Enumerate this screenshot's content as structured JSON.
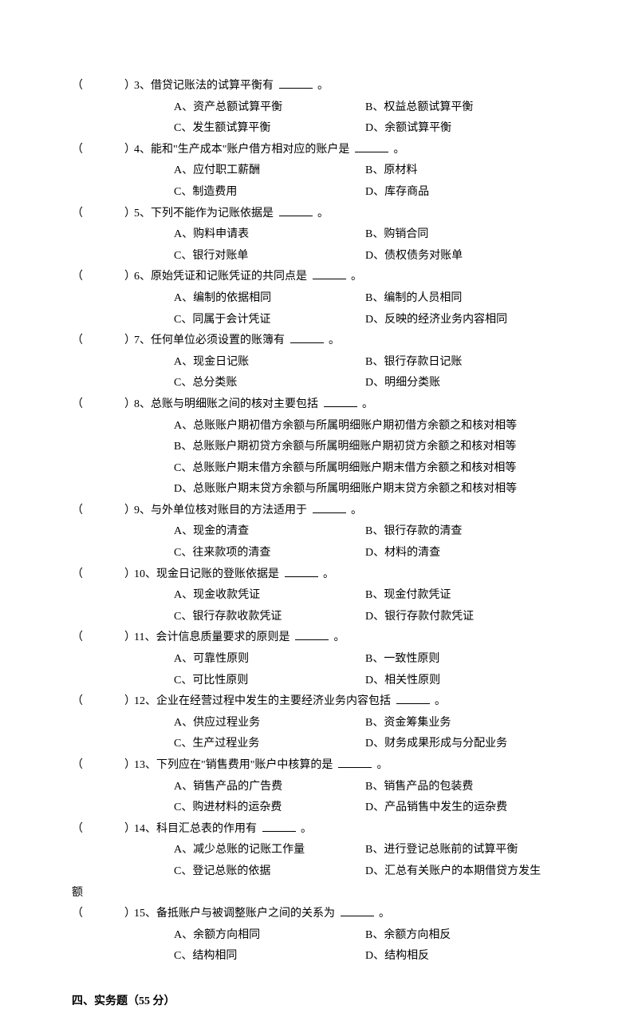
{
  "questions": [
    {
      "num": "3",
      "stem": "借贷记账法的试算平衡有",
      "A": "资产总额试算平衡",
      "B": "权益总额试算平衡",
      "C": "发生额试算平衡",
      "D": "余额试算平衡"
    },
    {
      "num": "4",
      "stem": "能和\"生产成本\"账户借方相对应的账户是",
      "A": "应付职工薪酬",
      "B": "原材料",
      "C": "制造费用",
      "D": "库存商品"
    },
    {
      "num": "5",
      "stem": "下列不能作为记账依据是",
      "A": "购料申请表",
      "B": "购销合同",
      "C": "银行对账单",
      "D": "债权债务对账单"
    },
    {
      "num": "6",
      "stem": "原始凭证和记账凭证的共同点是",
      "A": "编制的依据相同",
      "B": "编制的人员相同",
      "C": "同属于会计凭证",
      "D": "反映的经济业务内容相同"
    },
    {
      "num": "7",
      "stem": "任何单位必须设置的账簿有",
      "A": "现金日记账",
      "B": "银行存款日记账",
      "C": "总分类账",
      "D": "明细分类账"
    },
    {
      "num": "8",
      "stem": "总账与明细账之间的核对主要包括",
      "longA": "总账账户期初借方余额与所属明细账户期初借方余额之和核对相等",
      "longB": "总账账户期初贷方余额与所属明细账户期初贷方余额之和核对相等",
      "longC": "总账账户期末借方余额与所属明细账户期末借方余额之和核对相等",
      "longD": "总账账户期末贷方余额与所属明细账户期末贷方余额之和核对相等"
    },
    {
      "num": "9",
      "stem": "与外单位核对账目的方法适用于",
      "A": "现金的清查",
      "B": "银行存款的清查",
      "C": "往来款项的清查",
      "D": "材料的清查"
    },
    {
      "num": "10",
      "stem": "现金日记账的登账依据是",
      "A": "现金收款凭证",
      "B": "现金付款凭证",
      "C": "银行存款收款凭证",
      "D": "银行存款付款凭证"
    },
    {
      "num": "11",
      "stem": "会计信息质量要求的原则是",
      "A": "可靠性原则",
      "B": "一致性原则",
      "C": "可比性原则",
      "D": "相关性原则"
    },
    {
      "num": "12",
      "stem": "企业在经营过程中发生的主要经济业务内容包括",
      "A": "供应过程业务",
      "B": "资金筹集业务",
      "C": "生产过程业务",
      "D": "财务成果形成与分配业务"
    },
    {
      "num": "13",
      "stem": "下列应在\"销售费用\"账户中核算的是",
      "A": "销售产品的广告费",
      "B": "销售产品的包装费",
      "C": "购进材料的运杂费",
      "D": "产品销售中发生的运杂费"
    },
    {
      "num": "14",
      "stem": "科目汇总表的作用有",
      "A": "减少总账的记账工作量",
      "B": "进行登记总账前的试算平衡",
      "C": "登记总账的依据",
      "D": "汇总有关账户的本期借贷方发生",
      "overflow": "额"
    },
    {
      "num": "15",
      "stem": "备抵账户与被调整账户之间的关系为",
      "A": "余额方向相同",
      "B": "余额方向相反",
      "C": "结构相同",
      "D": "结构相反"
    }
  ],
  "section": "四、实务题（55 分）"
}
